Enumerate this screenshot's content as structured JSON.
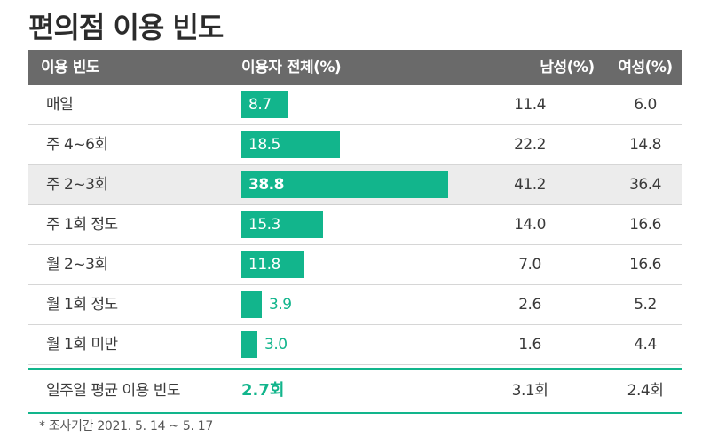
{
  "title": "편의점 이용 빈도",
  "header": {
    "frequency": "이용 빈도",
    "total": "이용자 전체(%)",
    "male": "남성(%)",
    "female": "여성(%)"
  },
  "colors": {
    "accent": "#12b58c",
    "header_bg": "#6a6a6a",
    "highlight_row": "#ececec"
  },
  "chart_data": {
    "type": "bar",
    "title": "편의점 이용 빈도",
    "categories": [
      "매일",
      "주 4~6회",
      "주 2~3회",
      "주 1회 정도",
      "월 2~3회",
      "월 1회 정도",
      "월 1회 미만"
    ],
    "series": [
      {
        "name": "이용자 전체(%)",
        "values": [
          8.7,
          18.5,
          38.8,
          15.3,
          11.8,
          3.9,
          3.0
        ]
      },
      {
        "name": "남성(%)",
        "values": [
          11.4,
          22.2,
          41.2,
          14.0,
          7.0,
          2.6,
          1.6
        ]
      },
      {
        "name": "여성(%)",
        "values": [
          6.0,
          14.8,
          36.4,
          16.6,
          16.6,
          5.2,
          4.4
        ]
      }
    ],
    "labels_total": [
      "8.7",
      "18.5",
      "38.8",
      "15.3",
      "11.8",
      "3.9",
      "3.0"
    ],
    "labels_male": [
      "11.4",
      "22.2",
      "41.2",
      "14.0",
      "7.0",
      "2.6",
      "1.6"
    ],
    "labels_female": [
      "6.0",
      "14.8",
      "36.4",
      "16.6",
      "16.6",
      "5.2",
      "4.4"
    ],
    "highlight_index": 2
  },
  "summary": {
    "label": "일주일 평균 이용 빈도",
    "total": "2.7회",
    "male": "3.1회",
    "female": "2.4회"
  },
  "footnote": "* 조사기간 2021. 5. 14 ~ 5. 17"
}
